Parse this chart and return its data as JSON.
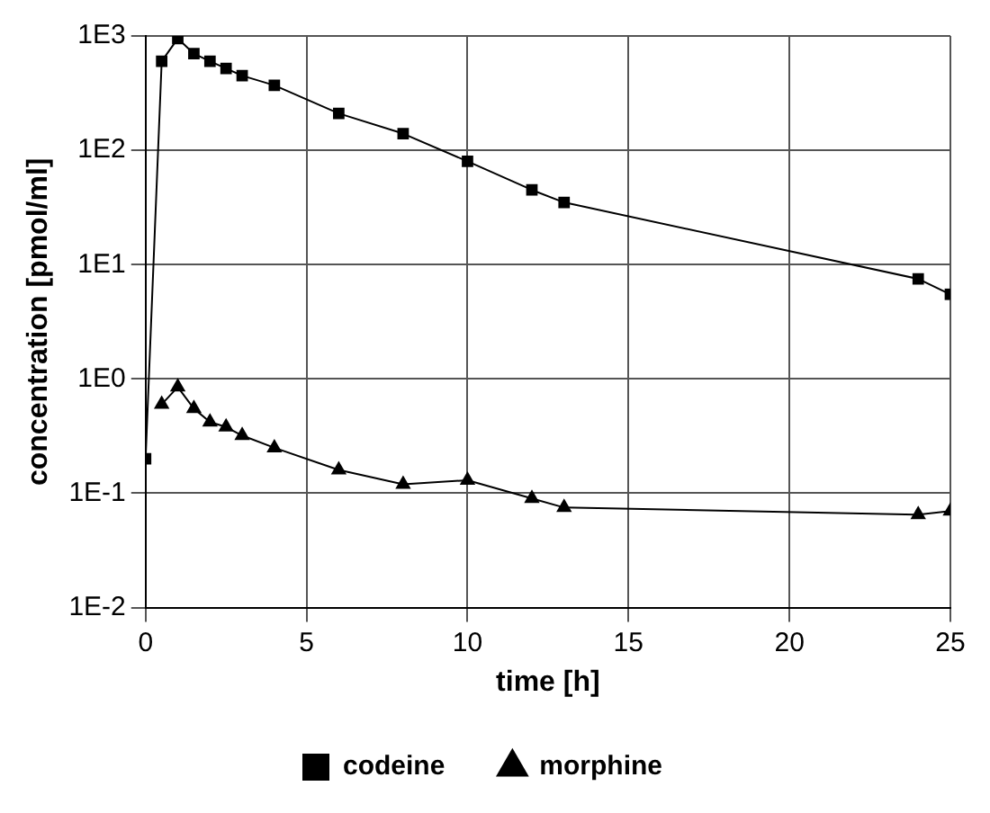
{
  "chart_data": {
    "type": "line",
    "xlabel": "time [h]",
    "ylabel": "concentration [pmol/ml]",
    "log": "y",
    "xlim": [
      0,
      25
    ],
    "xticks": [
      0,
      5,
      10,
      15,
      20,
      25
    ],
    "ylim": [
      0.01,
      1000
    ],
    "yticks": [
      {
        "value": 0.01,
        "label": "1E-2"
      },
      {
        "value": 0.1,
        "label": "1E-1"
      },
      {
        "value": 1,
        "label": "1E0"
      },
      {
        "value": 10,
        "label": "1E1"
      },
      {
        "value": 100,
        "label": "1E2"
      },
      {
        "value": 1000,
        "label": "1E3"
      }
    ],
    "grid": true,
    "legend": "bottom",
    "line_style": "solid",
    "series": [
      {
        "name": "codeine",
        "color": "#000000",
        "marker": "square",
        "x": [
          0,
          0.5,
          1,
          1.5,
          2,
          2.5,
          3,
          4,
          6,
          8,
          10,
          12,
          13,
          24,
          25
        ],
        "values": [
          0.2,
          600,
          950,
          700,
          600,
          520,
          450,
          370,
          210,
          140,
          80,
          45,
          35,
          7.5,
          5.5
        ]
      },
      {
        "name": "morphine",
        "color": "#000000",
        "marker": "triangle",
        "x": [
          0.5,
          1,
          1.5,
          2,
          2.5,
          3,
          4,
          6,
          8,
          10,
          12,
          13,
          24,
          25
        ],
        "values": [
          0.6,
          0.85,
          0.55,
          0.42,
          0.38,
          0.32,
          0.25,
          0.16,
          0.12,
          0.13,
          0.09,
          0.075,
          0.065,
          0.07
        ]
      }
    ]
  }
}
